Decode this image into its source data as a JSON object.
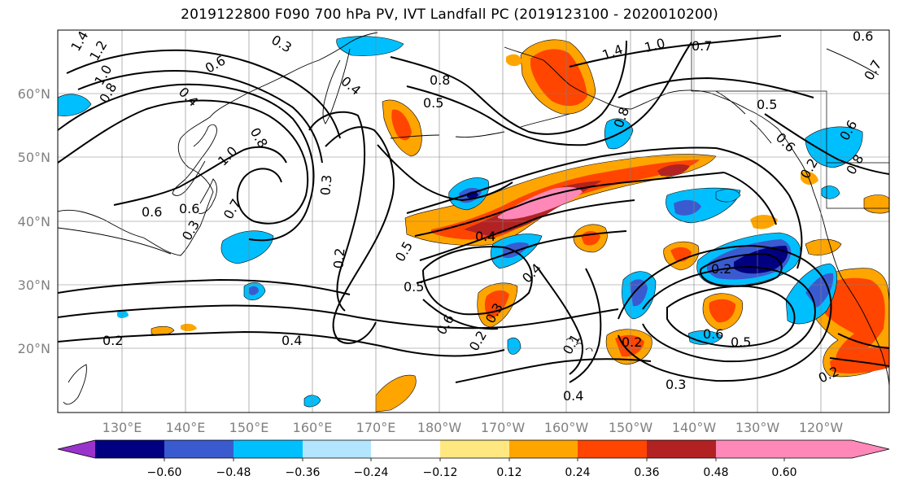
{
  "map": {
    "title": "2019122800 F090 700 hPa PV, IVT Landfall PC (2019123100 - 2020010200)",
    "lon_labels": [
      "130°E",
      "140°E",
      "150°E",
      "160°E",
      "170°E",
      "180°W",
      "170°W",
      "160°W",
      "150°W",
      "140°W",
      "130°W",
      "120°W"
    ],
    "lat_labels": [
      "60°N",
      "50°N",
      "40°N",
      "30°N",
      "20°N"
    ],
    "contour_labels": [
      "1.4",
      "1.2",
      "1.0",
      "0.8",
      "0.6",
      "0.3",
      "0.6",
      "0.8",
      "0.5",
      "0.4",
      "1.4",
      "1.0",
      "0.7",
      "0.6",
      "0.7",
      "0.5",
      "0.6",
      "0.8",
      "1.0",
      "0.8",
      "0.6",
      "0.7",
      "0.3",
      "0.3",
      "0.4",
      "0.5",
      "0.5",
      "0.4",
      "0.2",
      "0.2",
      "0.6",
      "0.3",
      "0.2",
      "0.1",
      "0.4",
      "0.2",
      "0.6",
      "0.5",
      "0.2",
      "0.3",
      "0.4",
      "0.2",
      "0.2",
      "0.4",
      "0.8",
      "0.6"
    ]
  },
  "colorbar": {
    "ticks": [
      "−0.60",
      "−0.48",
      "−0.36",
      "−0.24",
      "−0.12",
      "0.12",
      "0.24",
      "0.36",
      "0.48",
      "0.60"
    ],
    "colors": [
      "#9933cc",
      "#000080",
      "#3a5bd0",
      "#00bfff",
      "#b3e5ff",
      "#ffffff",
      "#ffe880",
      "#ffa500",
      "#ff4500",
      "#b22222",
      "#ff88b8"
    ]
  }
}
